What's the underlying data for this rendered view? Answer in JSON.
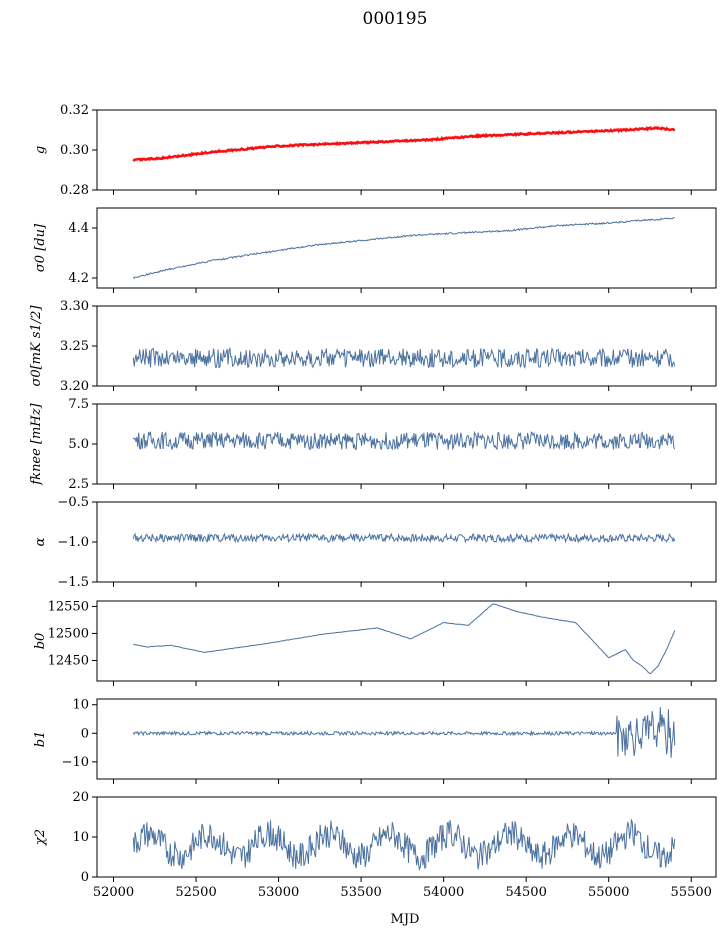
{
  "figure": {
    "title": "000195"
  },
  "chart_data": [
    {
      "type": "line",
      "panel": "g",
      "ylabel": "g",
      "yticks": [
        "0.28",
        "0.30",
        "0.32"
      ],
      "ylim": [
        0.28,
        0.32
      ],
      "xlim": [
        51900,
        55650
      ],
      "series": [
        {
          "color": "#4c72a0",
          "x": [
            52120,
            52300,
            52600,
            53000,
            53300,
            53600,
            53900,
            54200,
            54500,
            54800,
            55100,
            55300,
            55400
          ],
          "values": [
            0.295,
            0.296,
            0.299,
            0.302,
            0.303,
            0.304,
            0.305,
            0.307,
            0.308,
            0.309,
            0.31,
            0.311,
            0.31
          ]
        },
        {
          "color": "#ff0000",
          "x": [
            52120,
            52300,
            52600,
            53000,
            53300,
            53600,
            53900,
            54200,
            54500,
            54800,
            55100,
            55300,
            55400
          ],
          "values": [
            0.295,
            0.296,
            0.299,
            0.302,
            0.303,
            0.304,
            0.305,
            0.307,
            0.308,
            0.309,
            0.31,
            0.311,
            0.31
          ]
        }
      ]
    },
    {
      "type": "line",
      "panel": "sigma0-du",
      "ylabel": "σ0 [du]",
      "yticks": [
        "4.2",
        "4.4"
      ],
      "ylim": [
        4.16,
        4.48
      ],
      "xlim": [
        51900,
        55650
      ],
      "series": [
        {
          "color": "#4c72a0",
          "x": [
            52120,
            52300,
            52600,
            52900,
            53200,
            53500,
            53800,
            54100,
            54400,
            54700,
            55000,
            55200,
            55400
          ],
          "values": [
            4.2,
            4.23,
            4.27,
            4.3,
            4.33,
            4.35,
            4.37,
            4.38,
            4.39,
            4.41,
            4.42,
            4.43,
            4.44
          ]
        }
      ]
    },
    {
      "type": "line",
      "panel": "sigma0-mk",
      "ylabel": "σ0[mK s1/2]",
      "yticks": [
        "3.20",
        "3.25",
        "3.30"
      ],
      "ylim": [
        3.2,
        3.3
      ],
      "xlim": [
        51900,
        55650
      ],
      "series": [
        {
          "color": "#4c72a0",
          "x": [
            52120,
            55400
          ],
          "mean": 3.235,
          "amp": 0.012
        }
      ]
    },
    {
      "type": "line",
      "panel": "fknee",
      "ylabel": "fknee [mHz]",
      "yticks": [
        "2.5",
        "5.0",
        "7.5"
      ],
      "ylim": [
        2.5,
        7.5
      ],
      "xlim": [
        51900,
        55650
      ],
      "series": [
        {
          "color": "#4c72a0",
          "x": [
            52120,
            55400
          ],
          "mean": 5.2,
          "amp": 0.55
        }
      ]
    },
    {
      "type": "line",
      "panel": "alpha",
      "ylabel": "α",
      "yticks": [
        "−1.5",
        "−1.0",
        "−0.5"
      ],
      "ylim": [
        -1.5,
        -0.5
      ],
      "xlim": [
        51900,
        55650
      ],
      "series": [
        {
          "color": "#4c72a0",
          "x": [
            52120,
            55400
          ],
          "mean": -0.95,
          "amp": 0.05
        }
      ]
    },
    {
      "type": "line",
      "panel": "b0",
      "ylabel": "b0",
      "yticks": [
        "12450",
        "12500",
        "12550"
      ],
      "ylim": [
        12412,
        12560
      ],
      "xlim": [
        51900,
        55650
      ],
      "series": [
        {
          "color": "#4c72a0",
          "x": [
            52120,
            52200,
            52350,
            52550,
            52900,
            53300,
            53600,
            53800,
            54000,
            54150,
            54300,
            54450,
            54600,
            54800,
            55000,
            55100,
            55150,
            55200,
            55250,
            55300,
            55350,
            55400
          ],
          "values": [
            12480,
            12475,
            12478,
            12465,
            12480,
            12500,
            12510,
            12490,
            12520,
            12515,
            12555,
            12540,
            12530,
            12520,
            12455,
            12470,
            12450,
            12440,
            12425,
            12440,
            12470,
            12505
          ]
        }
      ]
    },
    {
      "type": "line",
      "panel": "b1",
      "ylabel": "b1",
      "yticks": [
        "−10",
        "0",
        "10"
      ],
      "ylim": [
        -16,
        12
      ],
      "xlim": [
        51900,
        55650
      ],
      "series": [
        {
          "color": "#4c72a0",
          "x": [
            52120,
            55400
          ],
          "mean": 0.0,
          "amp": 0.6
        }
      ]
    },
    {
      "type": "line",
      "panel": "chi2",
      "ylabel": "χ2",
      "yticks": [
        "0",
        "10",
        "20"
      ],
      "ylim": [
        0,
        20
      ],
      "xlim": [
        51900,
        55650
      ],
      "xlabel": "MJD",
      "xticks": [
        "52000",
        "52500",
        "53000",
        "53500",
        "54000",
        "54500",
        "55000",
        "55500"
      ],
      "series": [
        {
          "color": "#4c72a0",
          "x": [
            52120,
            55400
          ],
          "mean": 8.0,
          "amp": 3.5
        }
      ]
    }
  ]
}
